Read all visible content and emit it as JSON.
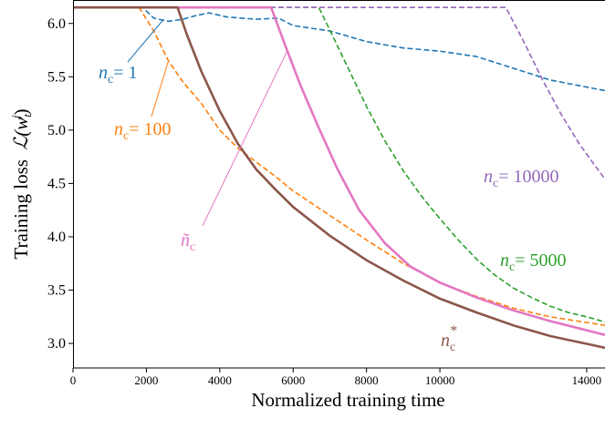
{
  "chart_data": {
    "type": "line",
    "title": "",
    "xlabel": "Normalized training time",
    "ylabel": "Training loss",
    "ylabel_math": "ℒ(w",
    "ylabel_math_sub": "t",
    "ylabel_math_sup": "j",
    "xlim": [
      0,
      14500
    ],
    "ylim": [
      2.77,
      6.22
    ],
    "xticks": [
      0,
      2000,
      4000,
      6000,
      8000,
      10000,
      14000
    ],
    "xtick_labels": [
      "0",
      "2000",
      "4000",
      "6000",
      "8000",
      "10000",
      "14000"
    ],
    "yticks": [
      3.0,
      3.5,
      4.0,
      4.5,
      5.0,
      5.5,
      6.0
    ],
    "ytick_labels": [
      "3.0",
      "3.5",
      "4.0",
      "4.5",
      "5.0",
      "5.5",
      "6.0"
    ],
    "grid": false,
    "series": [
      {
        "name": "n_c=1",
        "color": "#1f77b4",
        "dashed": true,
        "points": [
          [
            0,
            6.15
          ],
          [
            1900,
            6.15
          ],
          [
            2200,
            6.05
          ],
          [
            2600,
            6.02
          ],
          [
            3000,
            6.04
          ],
          [
            3300,
            6.07
          ],
          [
            3700,
            6.1
          ],
          [
            4200,
            6.06
          ],
          [
            5000,
            6.04
          ],
          [
            5600,
            6.05
          ],
          [
            6000,
            5.98
          ],
          [
            7000,
            5.93
          ],
          [
            8000,
            5.83
          ],
          [
            9000,
            5.77
          ],
          [
            10000,
            5.74
          ],
          [
            11000,
            5.69
          ],
          [
            12000,
            5.58
          ],
          [
            13000,
            5.47
          ],
          [
            14500,
            5.37
          ]
        ]
      },
      {
        "name": "n_c=100",
        "color": "#ff7f0e",
        "dashed": true,
        "points": [
          [
            0,
            6.15
          ],
          [
            1800,
            6.15
          ],
          [
            2200,
            5.93
          ],
          [
            2600,
            5.65
          ],
          [
            3000,
            5.45
          ],
          [
            3500,
            5.25
          ],
          [
            4000,
            5.0
          ],
          [
            4500,
            4.83
          ],
          [
            5000,
            4.7
          ],
          [
            5500,
            4.57
          ],
          [
            6000,
            4.43
          ],
          [
            7000,
            4.2
          ],
          [
            8000,
            3.97
          ],
          [
            9000,
            3.75
          ],
          [
            10000,
            3.57
          ],
          [
            11000,
            3.44
          ],
          [
            12000,
            3.33
          ],
          [
            13000,
            3.25
          ],
          [
            14500,
            3.17
          ]
        ]
      },
      {
        "name": "n_c=5000",
        "color": "#2ca02c",
        "dashed": true,
        "points": [
          [
            0,
            6.15
          ],
          [
            6700,
            6.15
          ],
          [
            7000,
            5.94
          ],
          [
            7500,
            5.58
          ],
          [
            8000,
            5.22
          ],
          [
            8500,
            4.9
          ],
          [
            9000,
            4.62
          ],
          [
            9500,
            4.38
          ],
          [
            10000,
            4.17
          ],
          [
            10500,
            3.97
          ],
          [
            11000,
            3.79
          ],
          [
            11500,
            3.64
          ],
          [
            12000,
            3.52
          ],
          [
            12500,
            3.43
          ],
          [
            13000,
            3.35
          ],
          [
            13500,
            3.29
          ],
          [
            14000,
            3.25
          ],
          [
            14500,
            3.2
          ]
        ]
      },
      {
        "name": "n_c=10000",
        "color": "#9467bd",
        "dashed": true,
        "points": [
          [
            0,
            6.15
          ],
          [
            11800,
            6.15
          ],
          [
            12300,
            5.82
          ],
          [
            12800,
            5.47
          ],
          [
            13300,
            5.15
          ],
          [
            13800,
            4.87
          ],
          [
            14200,
            4.68
          ],
          [
            14500,
            4.54
          ]
        ]
      },
      {
        "name": "tilde_n_c",
        "color": "#e377c2",
        "dashed": false,
        "points": [
          [
            0,
            6.15
          ],
          [
            5400,
            6.15
          ],
          [
            5800,
            5.78
          ],
          [
            6200,
            5.42
          ],
          [
            6700,
            5.02
          ],
          [
            7200,
            4.64
          ],
          [
            7800,
            4.25
          ],
          [
            8500,
            3.94
          ],
          [
            9200,
            3.72
          ],
          [
            10000,
            3.57
          ],
          [
            11000,
            3.43
          ],
          [
            12000,
            3.31
          ],
          [
            13000,
            3.21
          ],
          [
            14500,
            3.08
          ]
        ]
      },
      {
        "name": "n_c*",
        "color": "#8c564b",
        "dashed": false,
        "points": [
          [
            0,
            6.15
          ],
          [
            2850,
            6.15
          ],
          [
            3100,
            5.9
          ],
          [
            3500,
            5.55
          ],
          [
            4000,
            5.18
          ],
          [
            4500,
            4.87
          ],
          [
            5000,
            4.63
          ],
          [
            5500,
            4.45
          ],
          [
            6000,
            4.28
          ],
          [
            7000,
            4.01
          ],
          [
            8000,
            3.78
          ],
          [
            9000,
            3.59
          ],
          [
            10000,
            3.42
          ],
          [
            11000,
            3.29
          ],
          [
            12000,
            3.17
          ],
          [
            13000,
            3.07
          ],
          [
            14500,
            2.96
          ]
        ]
      }
    ],
    "annotations": [
      {
        "series": "n_c=1",
        "symbol": "n",
        "sub": "c",
        "text": "= 1",
        "color": "#1f77b4",
        "pointer_to": [
          2450,
          6.03
        ]
      },
      {
        "series": "n_c=100",
        "symbol": "n",
        "sub": "c",
        "text": "= 100",
        "color": "#ff7f0e",
        "pointer_to": [
          2600,
          5.65
        ]
      },
      {
        "series": "n_c=10000",
        "symbol": "n",
        "sub": "c",
        "text": "= 10000",
        "color": "#9467bd"
      },
      {
        "series": "n_c=5000",
        "symbol": "n",
        "sub": "c",
        "text": "= 5000",
        "color": "#2ca02c"
      },
      {
        "series": "tilde_n_c",
        "symbol": "ñ",
        "sub": "c",
        "text": "",
        "color": "#e377c2",
        "pointer_to": [
          5850,
          5.75
        ]
      },
      {
        "series": "n_c*",
        "symbol": "n",
        "sub": "c",
        "sup": "*",
        "text": "",
        "color": "#8c564b"
      }
    ]
  }
}
